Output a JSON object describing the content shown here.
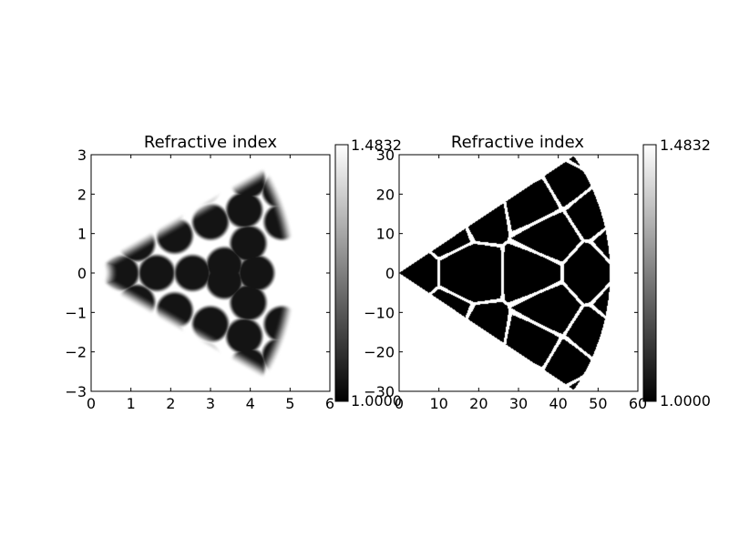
{
  "colors": {
    "background": "#ffffff",
    "low": "#000000",
    "high": "#ffffff",
    "axis": "#000000"
  },
  "chart_data": [
    {
      "type": "heatmap",
      "title": "Refractive index",
      "xlabel": "",
      "ylabel": "",
      "xlim": [
        0,
        6
      ],
      "ylim": [
        -3,
        3
      ],
      "xticks": [
        0,
        1,
        2,
        3,
        4,
        5,
        6
      ],
      "yticks": [
        -3,
        -2,
        -1,
        0,
        1,
        2,
        3
      ],
      "x_tick_labels": [
        "0",
        "1",
        "2",
        "3",
        "4",
        "5",
        "6"
      ],
      "y_tick_labels": [
        "−3",
        "−2",
        "−1",
        "0",
        "1",
        "2",
        "3"
      ],
      "grid": false,
      "colormap": "gray",
      "colorbar": {
        "min": 1.0,
        "max": 1.4832,
        "min_label": "1.0000",
        "max_label": "1.4832"
      },
      "domain": {
        "shape": "sector",
        "inner_radius": 0.5,
        "outer_radius": 5.0,
        "angle_min_deg": -30,
        "angle_max_deg": 30,
        "edge_blur": 0.18
      },
      "holes": {
        "radius": 0.45,
        "blur": 0.07,
        "centers": [
          [
            0.75,
            0.0
          ],
          [
            1.65,
            0.0
          ],
          [
            1.15,
            0.75
          ],
          [
            1.15,
            -0.75
          ],
          [
            2.55,
            0.0
          ],
          [
            2.1,
            0.95
          ],
          [
            2.1,
            -0.95
          ],
          [
            1.85,
            1.55
          ],
          [
            1.85,
            -1.55
          ],
          [
            3.35,
            0.2
          ],
          [
            3.35,
            -0.2
          ],
          [
            3.0,
            1.3
          ],
          [
            3.0,
            -1.3
          ],
          [
            2.8,
            2.2
          ],
          [
            2.8,
            -2.2
          ],
          [
            4.15,
            0.0
          ],
          [
            3.95,
            0.75
          ],
          [
            3.95,
            -0.75
          ],
          [
            3.85,
            1.6
          ],
          [
            3.85,
            -1.6
          ],
          [
            3.95,
            2.35
          ],
          [
            3.95,
            -2.35
          ],
          [
            4.8,
            1.3
          ],
          [
            4.8,
            -1.3
          ],
          [
            4.75,
            2.1
          ],
          [
            4.75,
            -2.1
          ]
        ]
      }
    },
    {
      "type": "heatmap",
      "title": "Refractive index",
      "xlabel": "",
      "ylabel": "",
      "xlim": [
        0,
        60
      ],
      "ylim": [
        -30,
        30
      ],
      "xticks": [
        0,
        10,
        20,
        30,
        40,
        50,
        60
      ],
      "yticks": [
        -30,
        -20,
        -10,
        0,
        10,
        20,
        30
      ],
      "x_tick_labels": [
        "0",
        "10",
        "20",
        "30",
        "40",
        "50",
        "60"
      ],
      "y_tick_labels": [
        "−30",
        "−20",
        "−10",
        "0",
        "10",
        "20",
        "30"
      ],
      "grid": false,
      "colormap": "gray",
      "colorbar": {
        "min": 1.0,
        "max": 1.4832,
        "min_label": "1.0000",
        "max_label": "1.4832"
      },
      "domain": {
        "shape": "sector",
        "inner_radius": 0,
        "outer_radius": 53,
        "angle_min_deg": -34,
        "angle_max_deg": 34,
        "edge_blur": 0
      },
      "cells": {
        "line_width": 0.75,
        "centers": [
          [
            2.0,
            0.0
          ],
          [
            18.0,
            0.0
          ],
          [
            20.0,
            15.5
          ],
          [
            20.0,
            -15.5
          ],
          [
            34.0,
            0.0
          ],
          [
            33.5,
            18.0
          ],
          [
            33.5,
            -18.0
          ],
          [
            43.0,
            23.5
          ],
          [
            43.0,
            -23.5
          ],
          [
            48.0,
            0.0
          ],
          [
            49.0,
            16.0
          ],
          [
            49.0,
            -16.0
          ],
          [
            56.0,
            7.5
          ],
          [
            56.0,
            -7.5
          ],
          [
            47.0,
            30.5
          ],
          [
            47.0,
            -30.5
          ],
          [
            29.0,
            25.5
          ],
          [
            29.0,
            -25.5
          ],
          [
            12.0,
            12.0
          ],
          [
            12.0,
            -12.0
          ],
          [
            38.0,
            9.0
          ],
          [
            38.0,
            -9.0
          ]
        ]
      }
    }
  ]
}
